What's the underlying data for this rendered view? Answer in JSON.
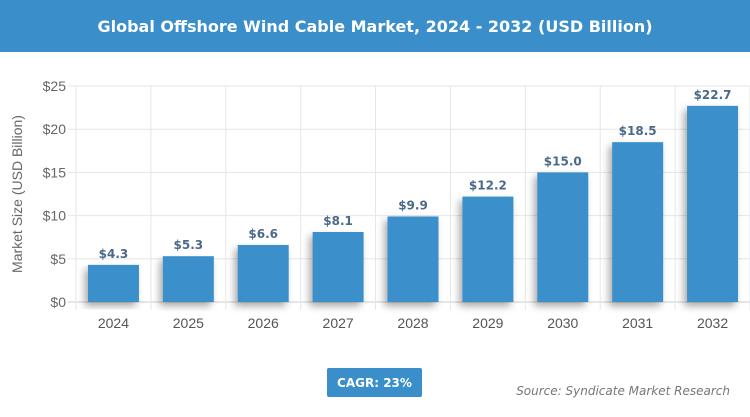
{
  "chart_data": {
    "type": "bar",
    "title": "Global Offshore Wind Cable Market, 2024 - 2032 (USD Billion)",
    "ylabel": "Market Size (USD Billion)",
    "xlabel": "",
    "categories": [
      "2024",
      "2025",
      "2026",
      "2027",
      "2028",
      "2029",
      "2030",
      "2031",
      "2032"
    ],
    "values": [
      4.3,
      5.3,
      6.6,
      8.1,
      9.9,
      12.2,
      15.0,
      18.5,
      22.7
    ],
    "data_labels": [
      "$4.3",
      "$5.3",
      "$6.6",
      "$8.1",
      "$9.9",
      "$12.2",
      "$15.0",
      "$18.5",
      "$22.7"
    ],
    "ylim": [
      0,
      25
    ],
    "yticks": [
      0,
      5,
      10,
      15,
      20,
      25
    ],
    "ytick_labels": [
      "$0",
      "$5",
      "$10",
      "$15",
      "$20",
      "$25"
    ],
    "grid": true,
    "bar_color": "#3a8fcb",
    "label_color": "#4a6a8a"
  },
  "cagr_label": "CAGR: 23%",
  "source": "Source: Syndicate Market Research"
}
